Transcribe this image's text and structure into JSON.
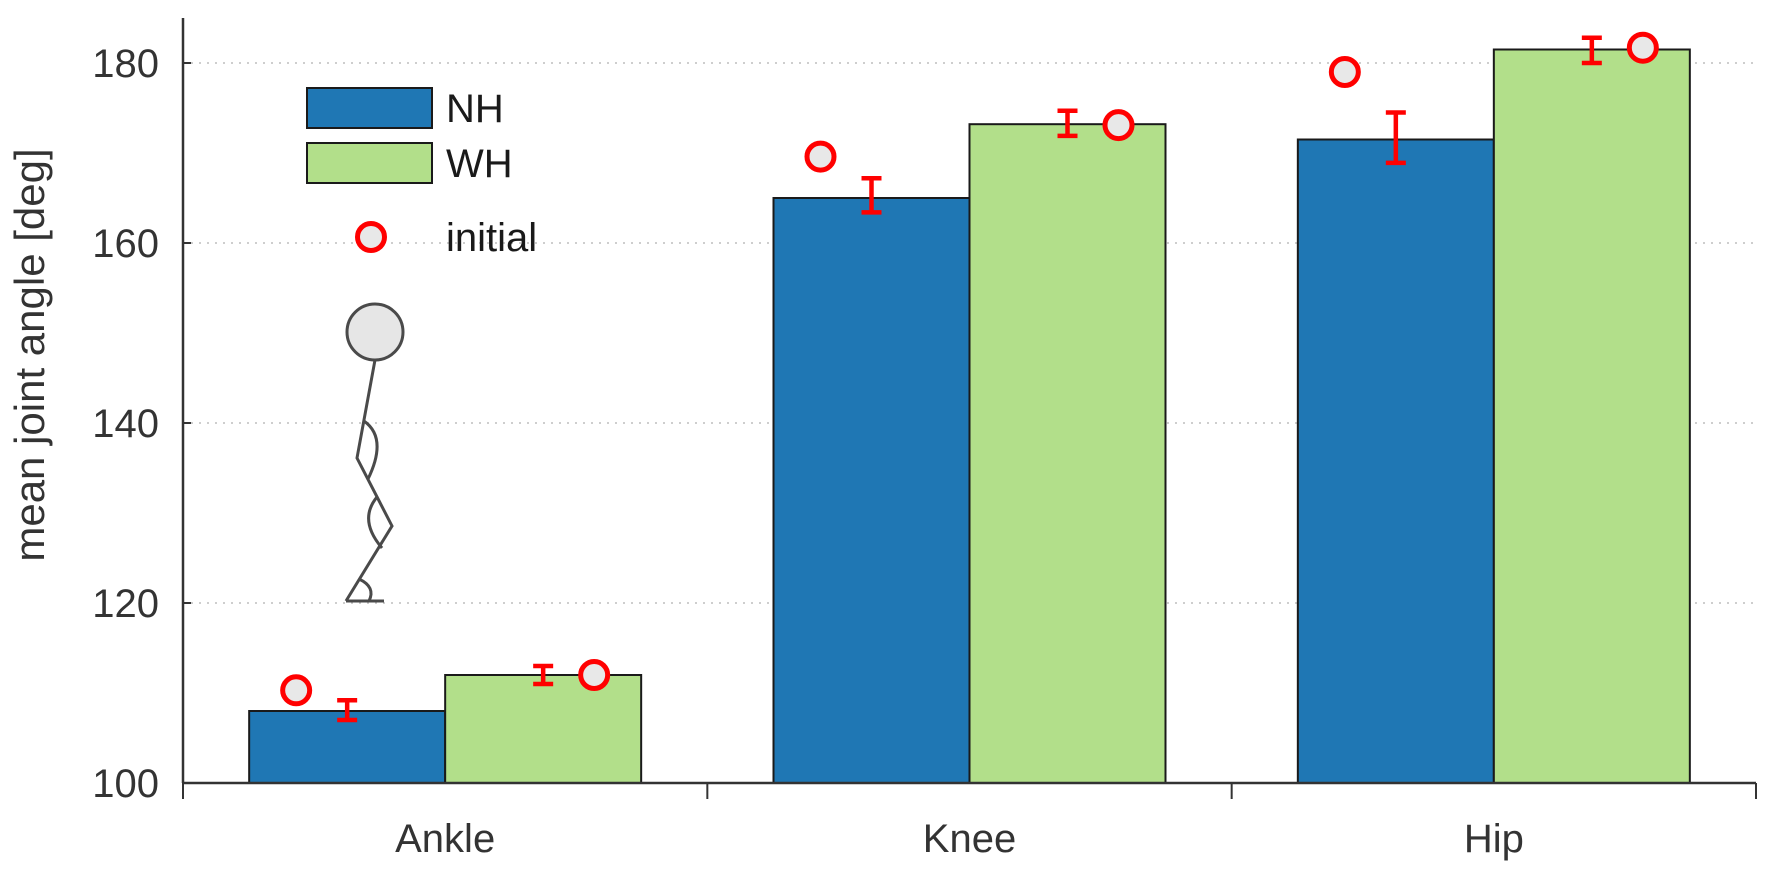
{
  "chart_data": {
    "type": "bar",
    "ylabel": "mean joint angle [deg]",
    "ylim": [
      100,
      185
    ],
    "yticks": [
      100,
      120,
      140,
      160,
      180
    ],
    "grid": "horizontal dotted",
    "categories": [
      "Ankle",
      "Knee",
      "Hip"
    ],
    "series": [
      {
        "name": "NH",
        "color": "#1f77b4",
        "values": [
          108,
          165,
          171.5
        ],
        "err_center": [
          108.1,
          165.3,
          171.7
        ],
        "err_halfwidth": [
          1.1,
          1.9,
          2.8
        ],
        "initial": [
          110.3,
          169.6,
          179
        ]
      },
      {
        "name": "WH",
        "color": "#b2df8a",
        "values": [
          112,
          173.2,
          181.5
        ],
        "err_center": [
          112,
          173.3,
          181.4
        ],
        "err_halfwidth": [
          1.0,
          1.4,
          1.4
        ],
        "initial": [
          112,
          173.1,
          181.7
        ]
      }
    ],
    "legend": {
      "position": "top-left",
      "items": [
        "NH",
        "WH",
        "initial"
      ]
    },
    "initial_marker": {
      "label": "initial",
      "stroke": "#ff0000",
      "fill": "#e8e8e8"
    },
    "errorbar_color": "#ff0000"
  }
}
